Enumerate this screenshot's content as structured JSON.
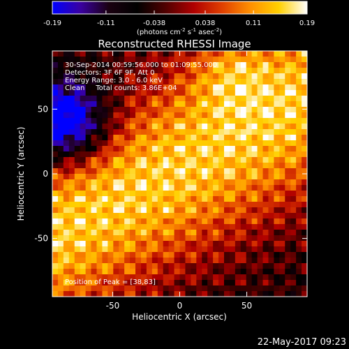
{
  "chart_data": {
    "type": "heatmap",
    "title": "Reconstructed RHESSI Image",
    "xlabel": "Heliocentric X (arcsec)",
    "ylabel": "Heliocentric Y (arcsec)",
    "xlim": [
      -95,
      95
    ],
    "ylim": [
      -95,
      95
    ],
    "xticks": [
      -50,
      0,
      50
    ],
    "yticks": [
      -50,
      0,
      50
    ],
    "colorbar": {
      "range": [
        -0.19,
        0.19
      ],
      "ticks": [
        "-0.19",
        "-0.11",
        "-0.038",
        "0.038",
        "0.11",
        "0.19"
      ],
      "units_text": "(photons cm",
      "units_exp1": "-2",
      "units_mid": " s",
      "units_exp2": "-1",
      "units_mid2": " asec",
      "units_exp3": "-2",
      "units_close": ")"
    },
    "annotations": [
      "30-Sep-2014 00:59:56.000 to 01:09:55.000",
      "Detectors: 3F 6F 9F, Att 0",
      "Energy Range: 3.0 - 6.0 keV",
      "Clean     Total counts: 3.86E+04"
    ],
    "peak_label": "Position of Peak = [38,83]",
    "peak": [
      38,
      83
    ],
    "grid": false,
    "colormap": [
      "#0000ff",
      "#3a00a0",
      "#1a0010",
      "#000000",
      "#500000",
      "#b00000",
      "#e04000",
      "#ff9000",
      "#ffd000",
      "#ffffff"
    ],
    "peak_value": 0.19,
    "low_value": -0.19
  },
  "footer": {
    "timestamp": "22-May-2017 09:23"
  }
}
